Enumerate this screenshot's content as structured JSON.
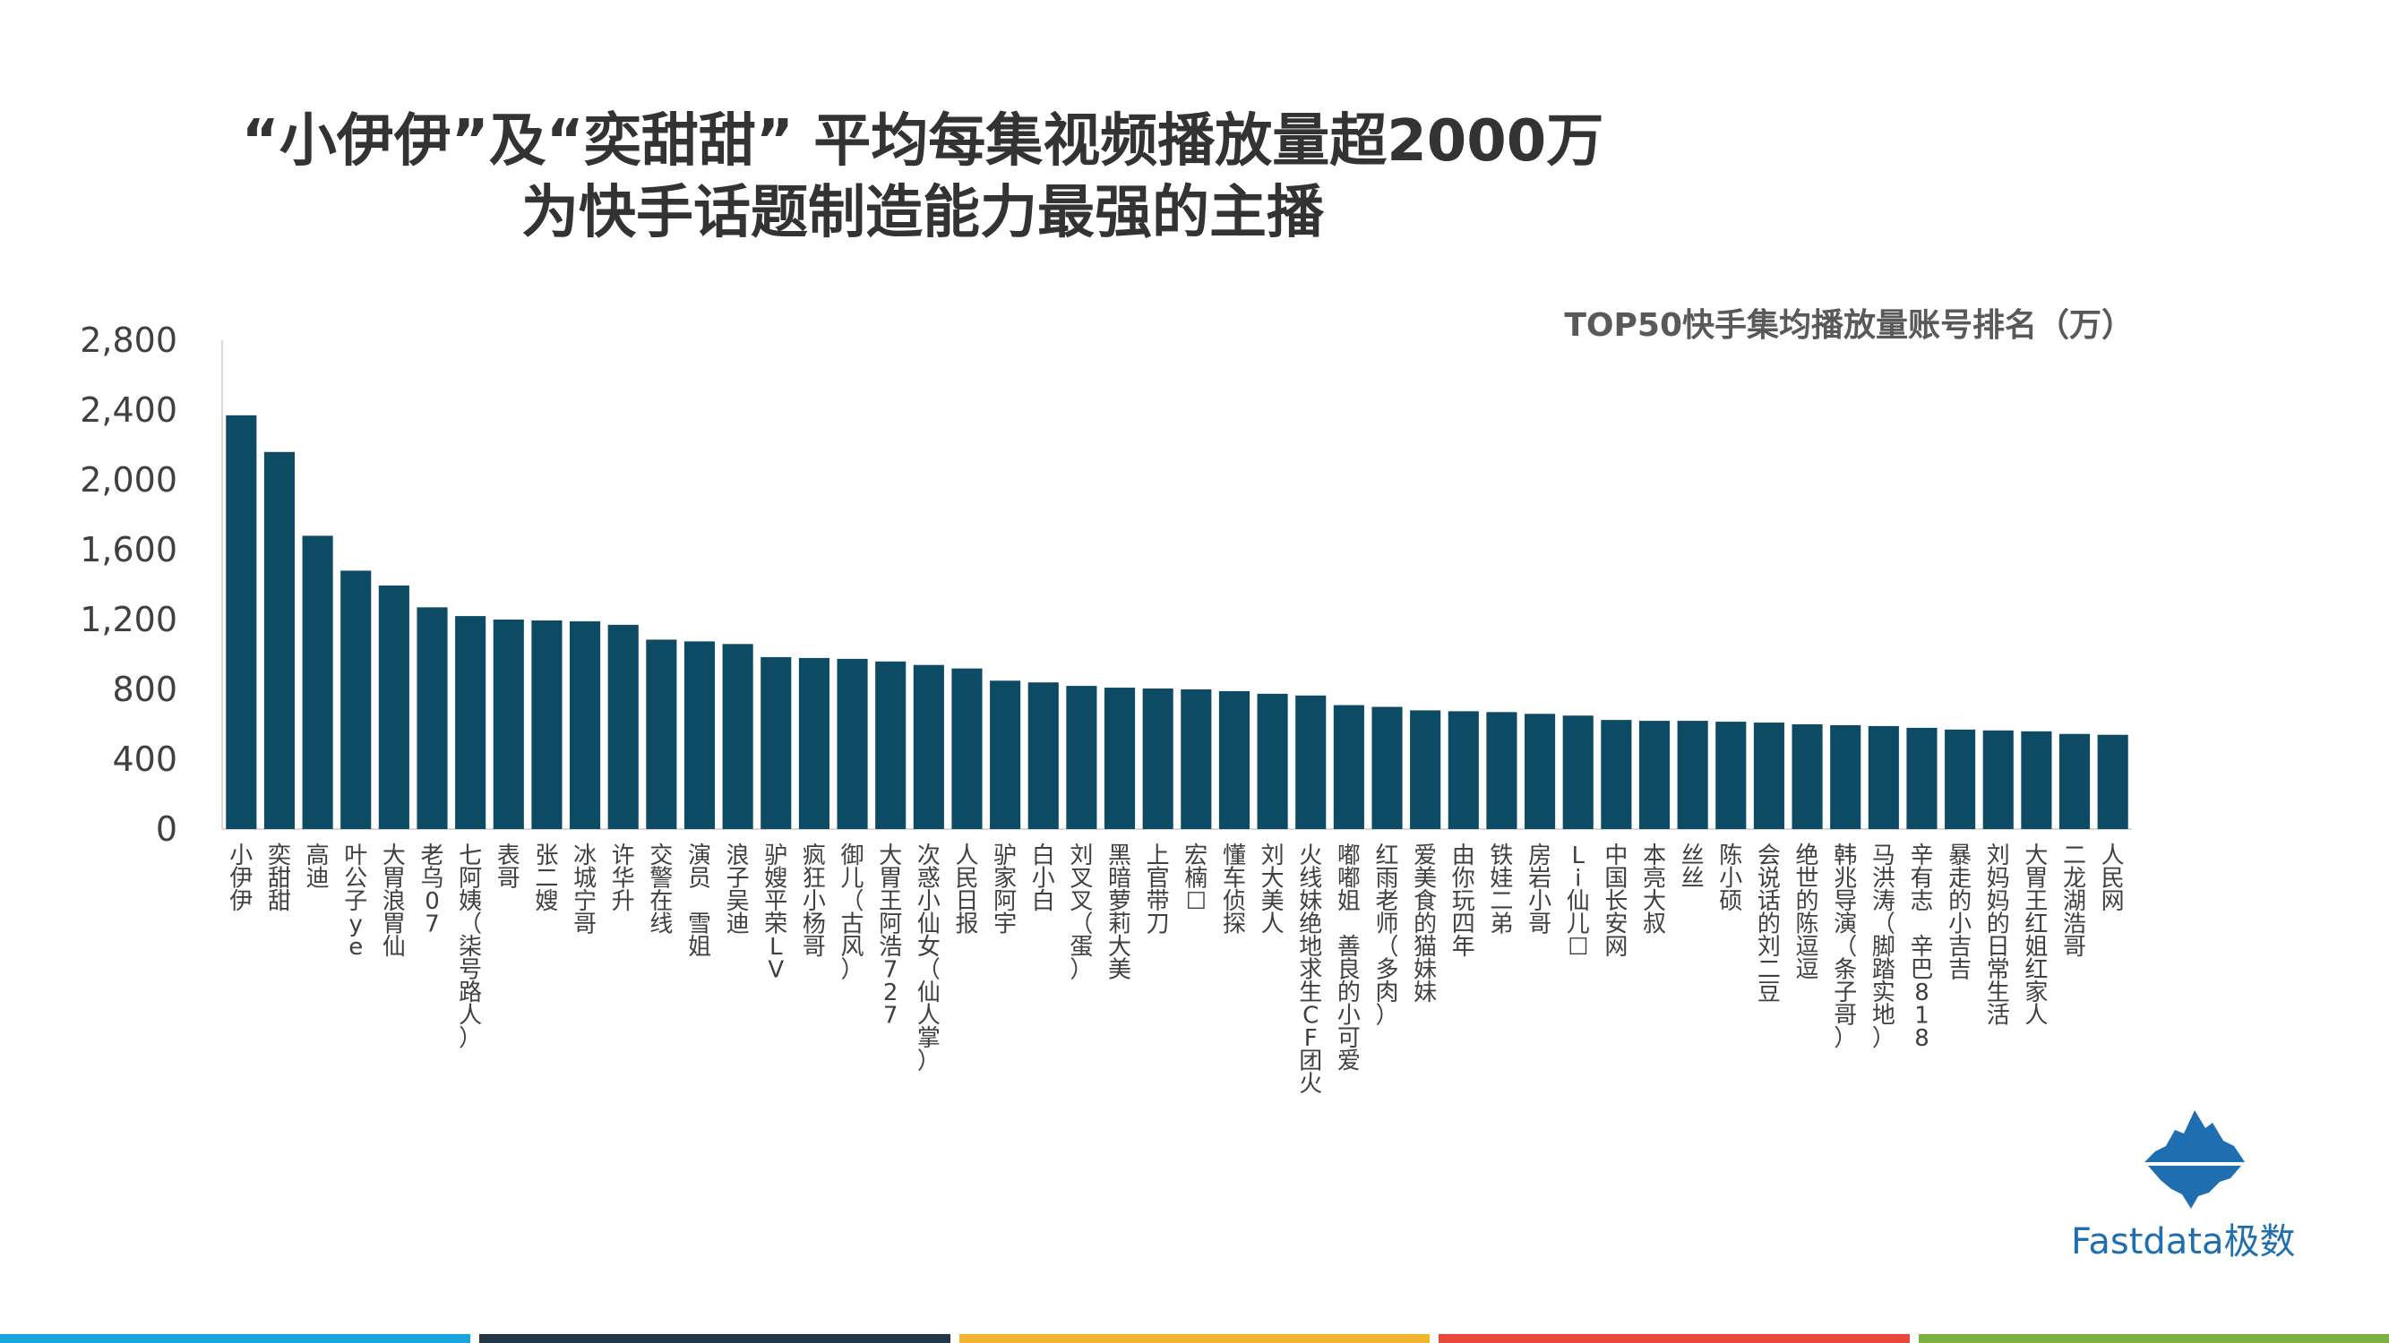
{
  "title_lines": [
    "“小伊伊”及“奕甜甜” 平均每集视频播放量超2000万",
    "为快手话题制造能力最强的主播"
  ],
  "brand": {
    "name": "Fastdata极数",
    "logo_icon": "iceberg-logo-icon",
    "color": "#1f6fb0"
  },
  "footer_colors": [
    "#1aa3dc",
    "#243746",
    "#f2b531",
    "#e8483a",
    "#7bb043"
  ],
  "chart_data": {
    "type": "bar",
    "title": "TOP50快手集均播放量账号排名（万）",
    "bar_color": "#0d4a63",
    "ylim": [
      0,
      2800
    ],
    "yticks": [
      0,
      400,
      800,
      1200,
      1600,
      2000,
      2400,
      2800
    ],
    "ytick_labels": [
      "0",
      "400",
      "800",
      "1,200",
      "1,600",
      "2,000",
      "2,400",
      "2,800"
    ],
    "grid": false,
    "categories": [
      "小伊伊",
      "奕甜甜",
      "高迪",
      "叶公子ye",
      "大胃浪胃仙",
      "老乌07",
      "七阿姨（柒号路人）",
      "表哥",
      "张二嫂",
      "冰城宁哥",
      "许华升",
      "交警在线",
      "演员 雪姐",
      "浪子吴迪",
      "驴嫂平荣LV",
      "疯狂小杨哥",
      "御儿（古风）",
      "大胃王阿浩727",
      "次惑小仙女（仙人掌）",
      "人民日报",
      "驴家阿宇",
      "白小白",
      "刘叉叉（蛋）",
      "黑暗萝莉大美",
      "上官带刀",
      "宏楠☐",
      "懂车侦探",
      "刘大美人",
      "火线妹绝地求生CF团火",
      "嘟嘟姐 善良的小可爱",
      "红雨老师（多肉）",
      "爱美食的猫妹妹",
      "由你玩四年",
      "铁娃二弟",
      "房岩小哥",
      "Li仙儿☐",
      "中国长安网",
      "本亮大叔",
      "丝丝",
      "陈小硕",
      "会说话的刘二豆",
      "绝世的陈逗逗",
      "韩兆导演（条子哥）",
      "马洪涛（脚踏实地）",
      "辛有志 辛巴818",
      "暴走的小吉吉",
      "刘妈妈的日常生活",
      "大胃王红姐红家人",
      "二龙湖浩哥",
      "人民网"
    ],
    "values": [
      2370,
      2160,
      1680,
      1480,
      1395,
      1270,
      1220,
      1200,
      1195,
      1190,
      1170,
      1085,
      1075,
      1060,
      985,
      980,
      975,
      960,
      940,
      920,
      850,
      840,
      820,
      810,
      805,
      800,
      790,
      775,
      765,
      710,
      700,
      680,
      675,
      670,
      660,
      650,
      625,
      620,
      620,
      615,
      610,
      600,
      595,
      590,
      580,
      570,
      565,
      560,
      545,
      540
    ]
  }
}
